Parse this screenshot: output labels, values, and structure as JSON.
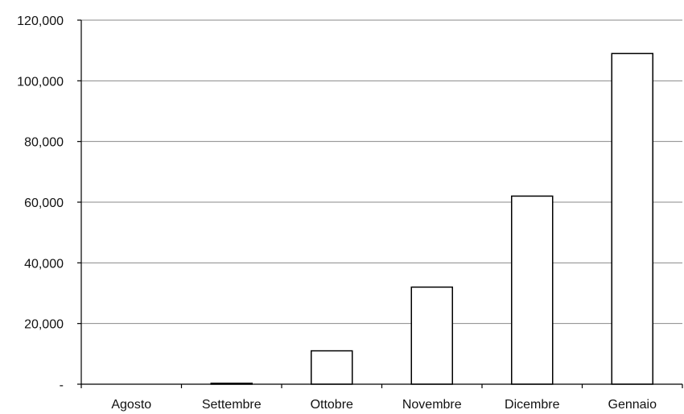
{
  "chart_data": {
    "type": "bar",
    "categories": [
      "Agosto",
      "Settembre",
      "Ottobre",
      "Novembre",
      "Dicembre",
      "Gennaio"
    ],
    "values": [
      0,
      300,
      11000,
      32000,
      62000,
      109000
    ],
    "ylim": [
      0,
      120000
    ],
    "yticks": [
      0,
      20000,
      40000,
      60000,
      80000,
      100000,
      120000
    ],
    "ytick_labels": [
      "-",
      "20,000",
      "40,000",
      "60,000",
      "80,000",
      "100,000",
      "120,000"
    ],
    "grid": true,
    "legend": "none",
    "colors": {
      "bar_fill": "#ffffff",
      "bar_stroke": "#000000",
      "grid": "#8a8a8a"
    }
  }
}
